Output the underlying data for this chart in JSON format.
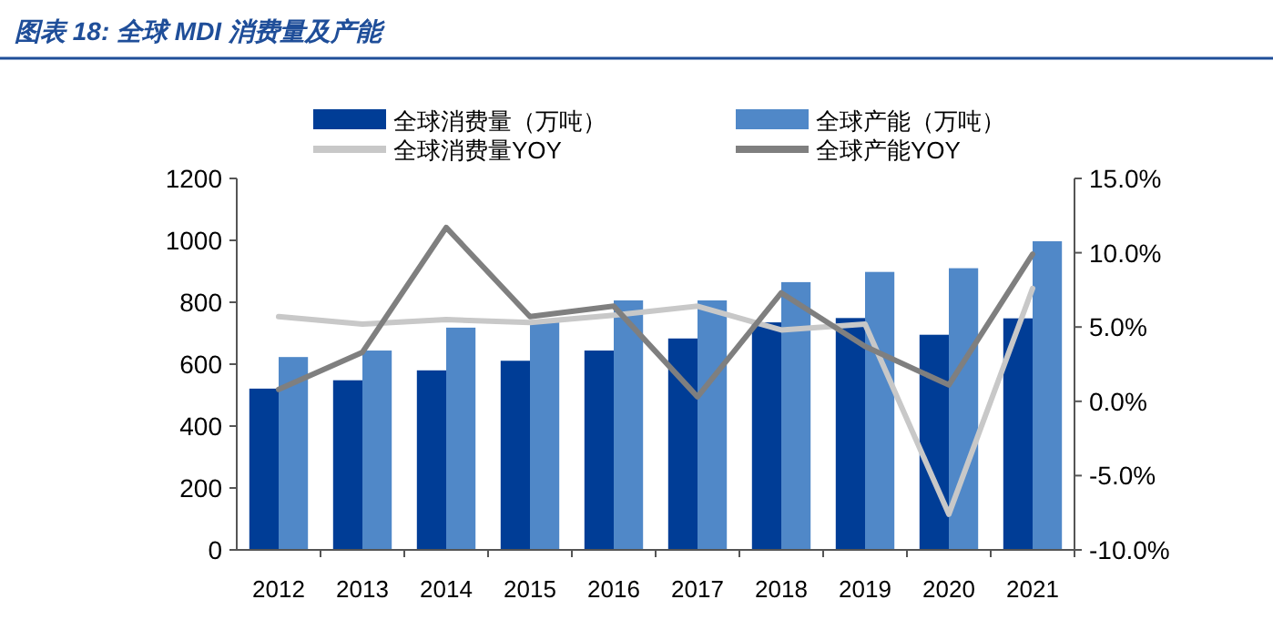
{
  "chart_data": {
    "type": "bar",
    "title": "图表 18:  全球 MDI 消费量及产能",
    "categories": [
      "2012",
      "2013",
      "2014",
      "2015",
      "2016",
      "2017",
      "2018",
      "2019",
      "2020",
      "2021"
    ],
    "series": [
      {
        "name": "全球消费量（万吨）",
        "color": "#003d96",
        "values": [
          521,
          548,
          580,
          611,
          644,
          683,
          735,
          749,
          695,
          748
        ]
      },
      {
        "name": "全球产能（万吨）",
        "color": "#5088c8",
        "values": [
          623,
          644,
          718,
          740,
          806,
          806,
          865,
          898,
          910,
          997
        ]
      },
      {
        "name": "全球消费量YOY",
        "type": "line",
        "axis": "y2",
        "color": "#c8c8c8",
        "values": [
          5.7,
          5.2,
          5.5,
          5.3,
          5.8,
          6.4,
          4.8,
          5.2,
          -7.6,
          7.6
        ]
      },
      {
        "name": "全球产能YOY",
        "type": "line",
        "axis": "y2",
        "color": "#7f7f7f",
        "values": [
          0.8,
          3.3,
          11.7,
          5.7,
          6.4,
          0.3,
          7.3,
          3.7,
          1.1,
          9.9
        ]
      }
    ],
    "ylim": [
      0,
      1200
    ],
    "yticks": [
      0,
      200,
      400,
      600,
      800,
      1000,
      1200
    ],
    "y2lim": [
      -10,
      15
    ],
    "y2ticks": [
      {
        "value": -10,
        "label": "-10.0%"
      },
      {
        "value": -5,
        "label": "-5.0%"
      },
      {
        "value": 0,
        "label": "0.0%"
      },
      {
        "value": 5,
        "label": "5.0%"
      },
      {
        "value": 10,
        "label": "10.0%"
      },
      {
        "value": 15,
        "label": "15.0%"
      }
    ],
    "legend": "top",
    "grid": false
  }
}
